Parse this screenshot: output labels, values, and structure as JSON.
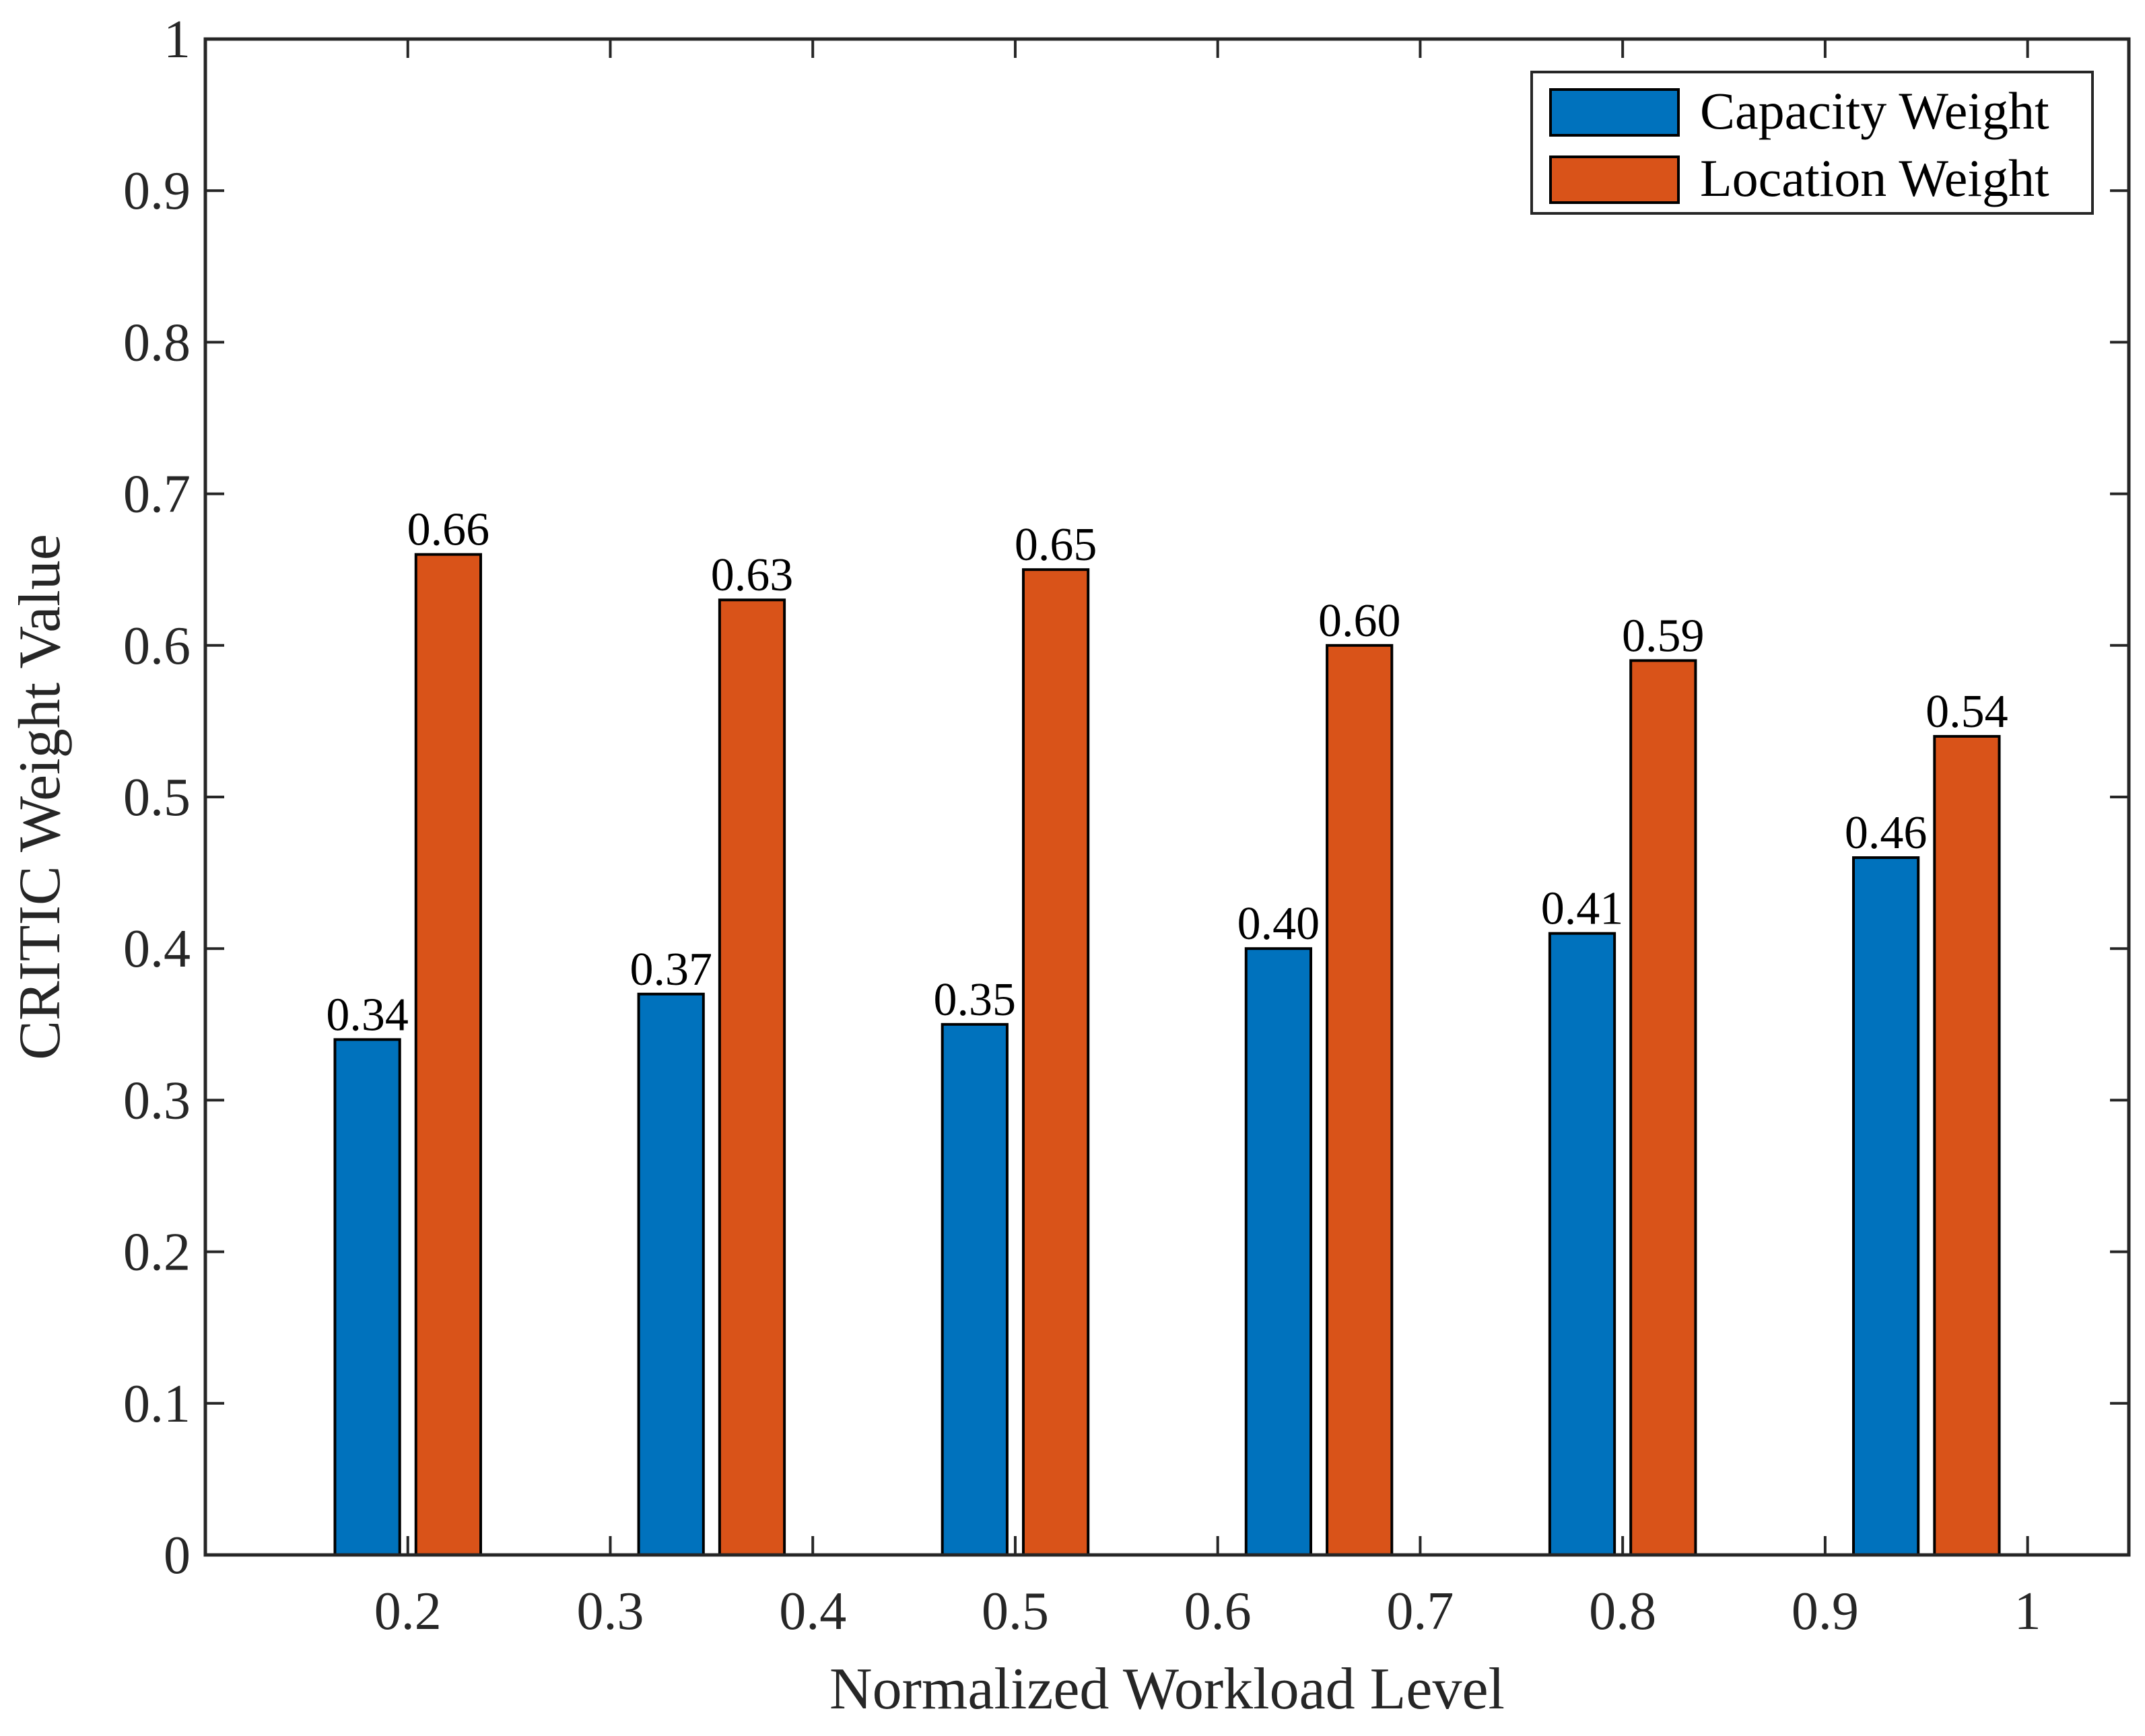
{
  "chart_data": {
    "type": "bar",
    "title": "",
    "xlabel": "Normalized Workload Level",
    "ylabel": "CRITIC Weight Value",
    "xlim": [
      0.1,
      1.05
    ],
    "ylim": [
      0,
      1
    ],
    "x_ticks": [
      0.2,
      0.3,
      0.4,
      0.5,
      0.6,
      0.7,
      0.8,
      0.9,
      1
    ],
    "x_tick_labels": [
      "0.2",
      "0.3",
      "0.4",
      "0.5",
      "0.6",
      "0.7",
      "0.8",
      "0.9",
      "1"
    ],
    "y_ticks": [
      0,
      0.1,
      0.2,
      0.3,
      0.4,
      0.5,
      0.6,
      0.7,
      0.8,
      0.9,
      1
    ],
    "y_tick_labels": [
      "0",
      "0.1",
      "0.2",
      "0.3",
      "0.4",
      "0.5",
      "0.6",
      "0.7",
      "0.8",
      "0.9",
      "1"
    ],
    "x": [
      0.2,
      0.35,
      0.5,
      0.65,
      0.8,
      0.95
    ],
    "legend_location": "top-right",
    "grid": false,
    "series": [
      {
        "name": "Capacity Weight",
        "color": "#0072BD",
        "values": [
          0.34,
          0.37,
          0.35,
          0.4,
          0.41,
          0.46
        ],
        "labels": [
          "0.34",
          "0.37",
          "0.35",
          "0.40",
          "0.41",
          "0.46"
        ]
      },
      {
        "name": "Location Weight",
        "color": "#D95319",
        "values": [
          0.66,
          0.63,
          0.65,
          0.6,
          0.59,
          0.54
        ],
        "labels": [
          "0.66",
          "0.63",
          "0.65",
          "0.60",
          "0.59",
          "0.54"
        ]
      }
    ]
  }
}
